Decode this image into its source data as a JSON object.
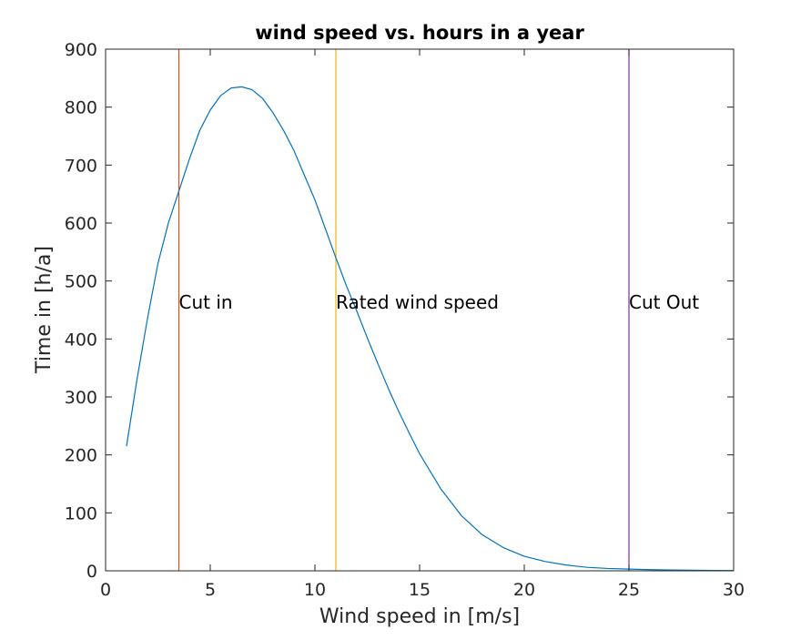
{
  "chart_data": {
    "type": "line",
    "title": "wind speed vs. hours in a year",
    "xlabel": "Wind speed in [m/s]",
    "ylabel": "Time in [h/a]",
    "xlim": [
      0,
      30
    ],
    "ylim": [
      0,
      900
    ],
    "xticks": [
      0,
      5,
      10,
      15,
      20,
      25,
      30
    ],
    "yticks": [
      0,
      100,
      200,
      300,
      400,
      500,
      600,
      700,
      800,
      900
    ],
    "grid": false,
    "series": [
      {
        "color": "#0072BD",
        "x": [
          1,
          1.5,
          2,
          2.5,
          3,
          3.5,
          4,
          4.5,
          5,
          5.5,
          6,
          6.5,
          7,
          7.5,
          8,
          8.5,
          9,
          9.5,
          10,
          10.5,
          11,
          11.5,
          12,
          12.5,
          13,
          13.5,
          14,
          14.5,
          15,
          16,
          17,
          18,
          19,
          20,
          21,
          22,
          23,
          24,
          25,
          26,
          27,
          28,
          29,
          30
        ],
        "y": [
          215,
          330,
          435,
          530,
          600,
          655,
          710,
          760,
          795,
          820,
          833,
          835,
          830,
          815,
          790,
          760,
          725,
          682,
          640,
          590,
          540,
          492,
          448,
          402,
          358,
          315,
          275,
          238,
          202,
          142,
          95,
          62,
          40,
          25,
          16,
          10,
          6,
          4,
          3,
          2,
          1.5,
          1,
          0.7,
          0.5
        ]
      }
    ],
    "vertical_lines": [
      {
        "x": 3.5,
        "color": "#D95319",
        "label": "Cut in"
      },
      {
        "x": 11,
        "color": "#EDB120",
        "label": "Rated wind speed"
      },
      {
        "x": 25,
        "color": "#7E2F8E",
        "label": "Cut Out"
      }
    ],
    "annotation_y": 440
  }
}
